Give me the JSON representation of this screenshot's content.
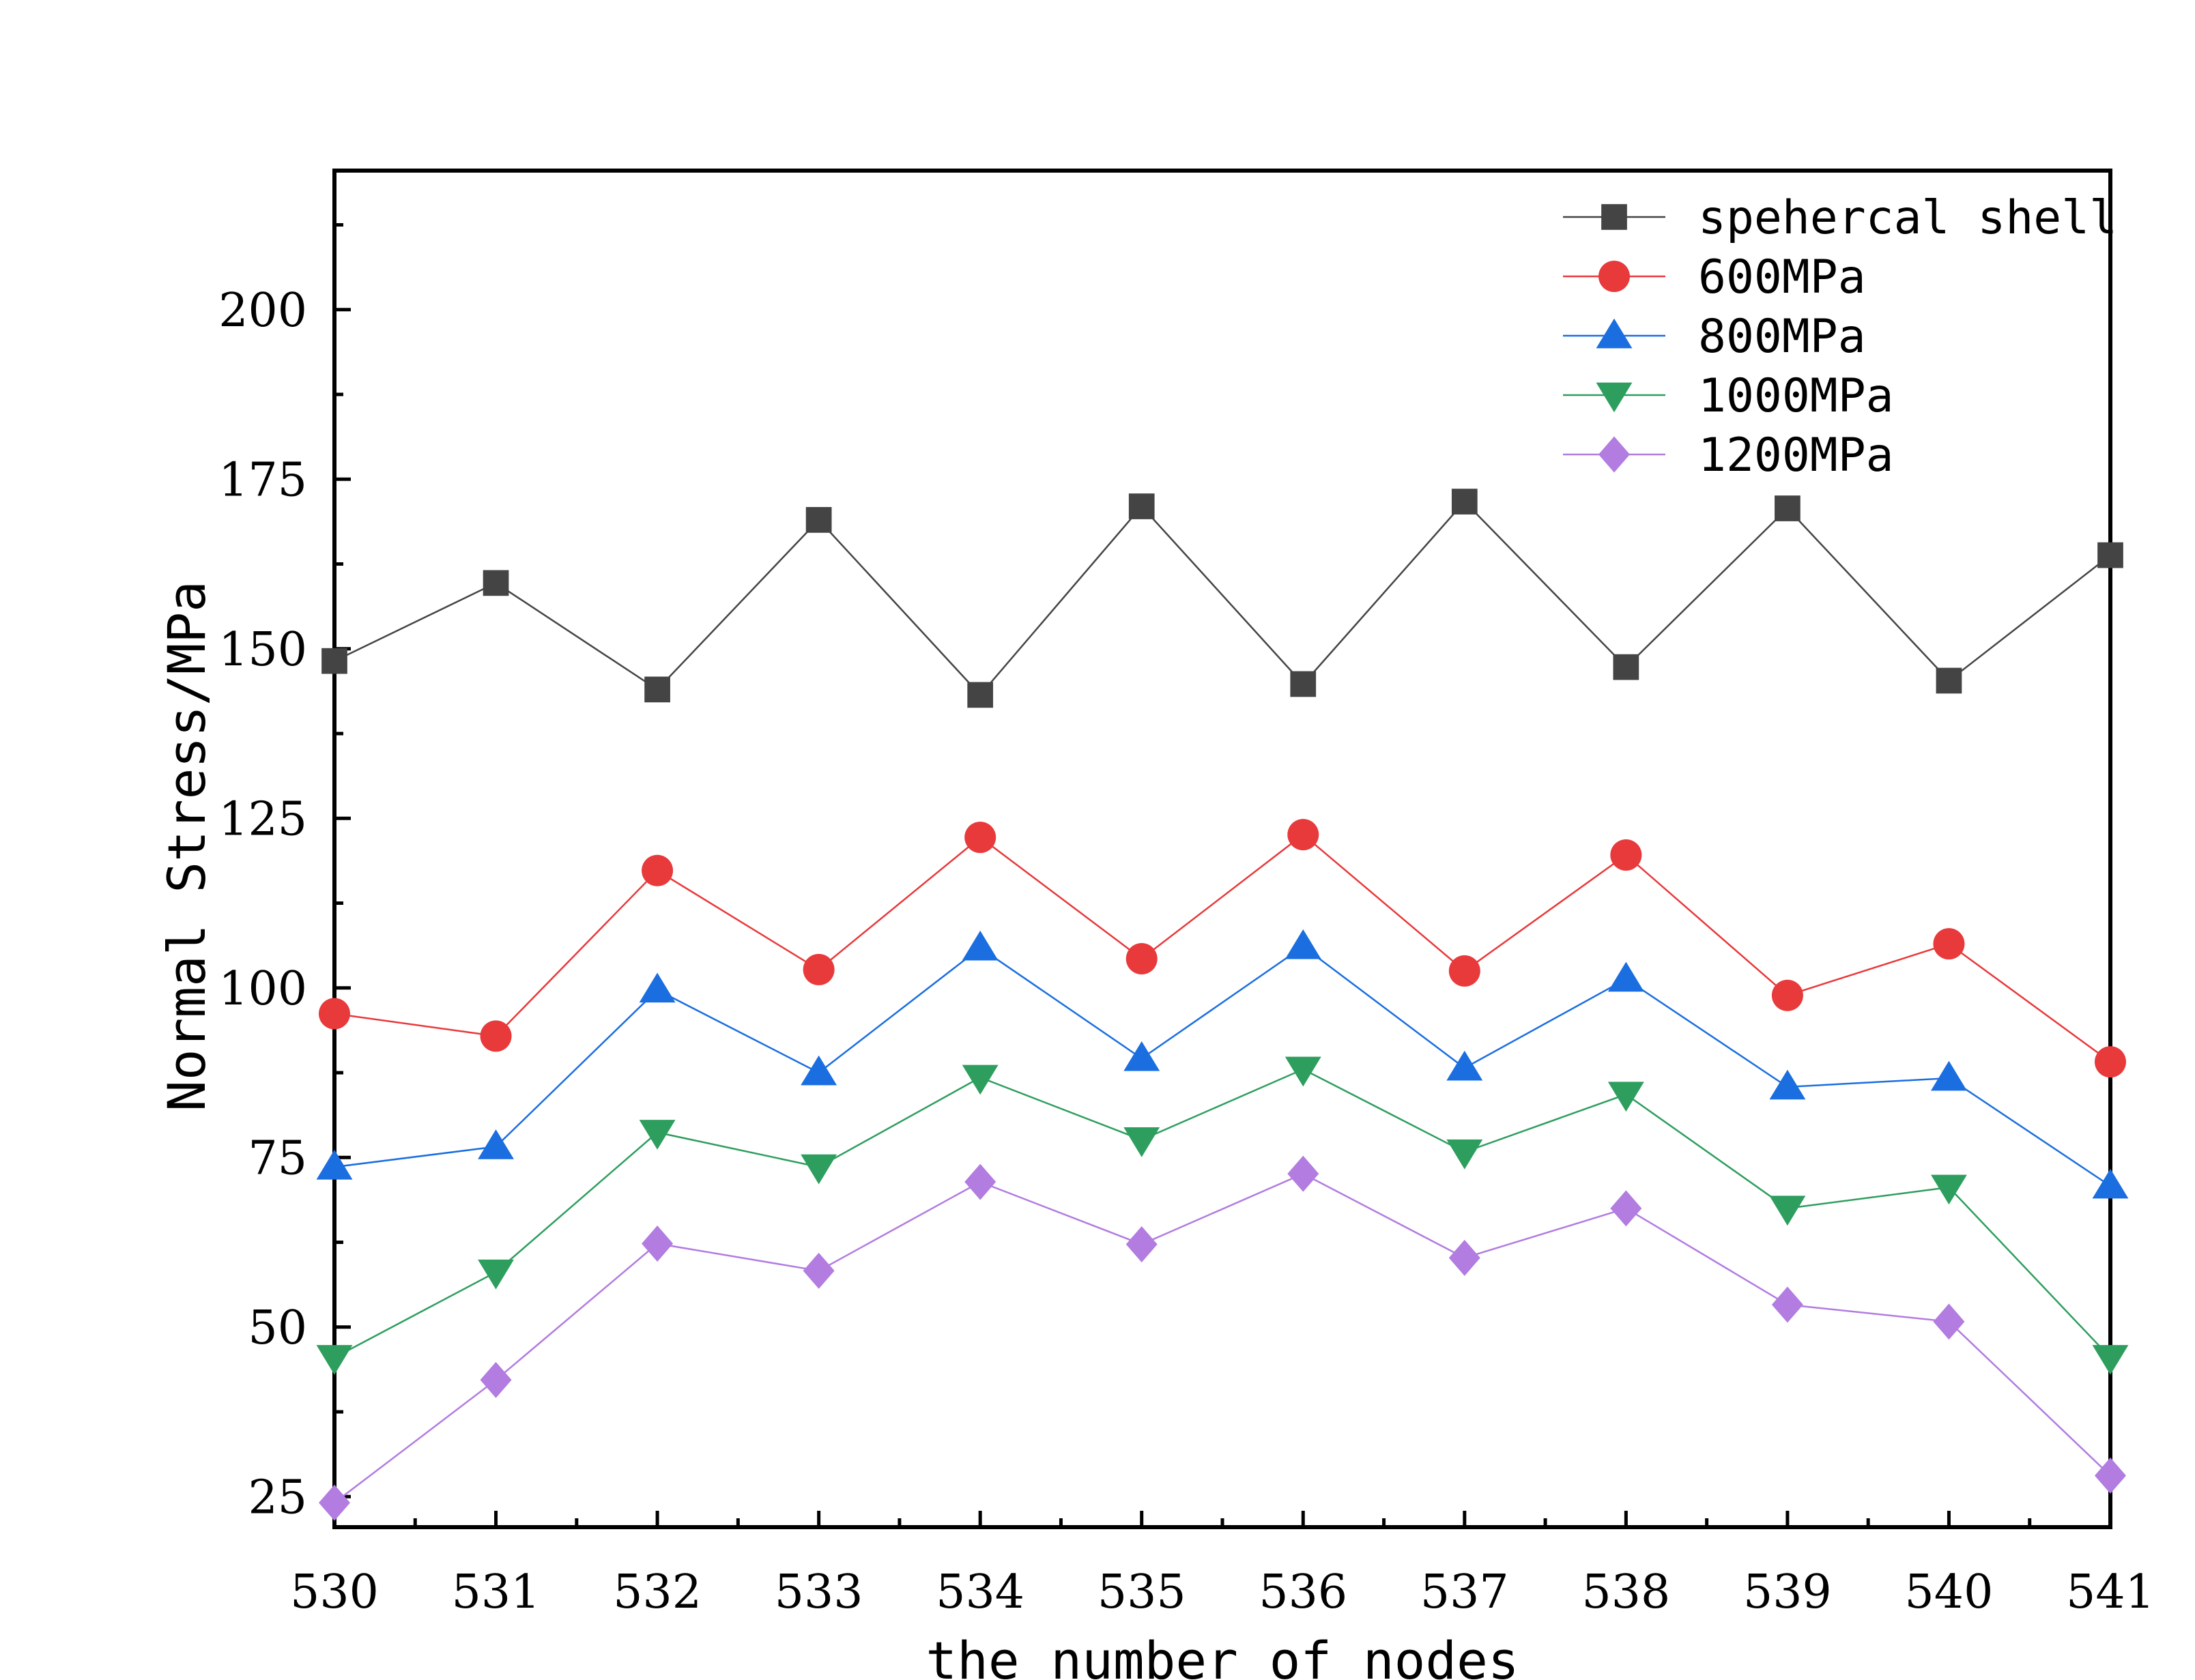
{
  "chart_data": {
    "type": "line",
    "title": "",
    "xlabel": "the number of nodes",
    "ylabel": "Normal Stress/MPa",
    "x": [
      530,
      531,
      532,
      533,
      534,
      535,
      536,
      537,
      538,
      539,
      540,
      541
    ],
    "xticks": [
      "530",
      "531",
      "532",
      "533",
      "534",
      "535",
      "536",
      "537",
      "538",
      "539",
      "540",
      "541"
    ],
    "yticks": [
      "25",
      "50",
      "75",
      "100",
      "125",
      "150",
      "175",
      "200"
    ],
    "xlim": [
      530,
      541
    ],
    "ylim": [
      20.5,
      220.5
    ],
    "grid": false,
    "legend_position": "top-right",
    "series": [
      {
        "name": "spehercal shell",
        "color": "#444444",
        "marker": "square",
        "values": [
          148.2,
          159.7,
          144.0,
          169.0,
          143.2,
          171.0,
          144.8,
          171.7,
          147.3,
          170.7,
          145.3,
          163.8
        ]
      },
      {
        "name": "600MPa",
        "color": "#e8393b",
        "marker": "circle",
        "values": [
          96.2,
          92.9,
          117.3,
          102.7,
          122.2,
          104.3,
          122.6,
          102.5,
          119.6,
          98.9,
          106.5,
          89.1
        ]
      },
      {
        "name": "800MPa",
        "color": "#1a6ee0",
        "marker": "triangle-up",
        "values": [
          73.6,
          76.6,
          99.7,
          87.5,
          105.9,
          89.6,
          106.1,
          88.2,
          101.3,
          85.4,
          86.7,
          70.8
        ]
      },
      {
        "name": "1000MPa",
        "color": "#2e9e5e",
        "marker": "triangle-down",
        "values": [
          45.5,
          58.1,
          78.7,
          73.6,
          86.8,
          77.6,
          88.0,
          75.8,
          84.3,
          67.5,
          70.6,
          45.5
        ]
      },
      {
        "name": "1200MPa",
        "color": "#b27ce0",
        "marker": "diamond",
        "values": [
          24.1,
          42.2,
          62.3,
          58.3,
          71.4,
          62.2,
          72.6,
          60.2,
          67.5,
          53.3,
          50.8,
          28.1
        ]
      }
    ]
  }
}
